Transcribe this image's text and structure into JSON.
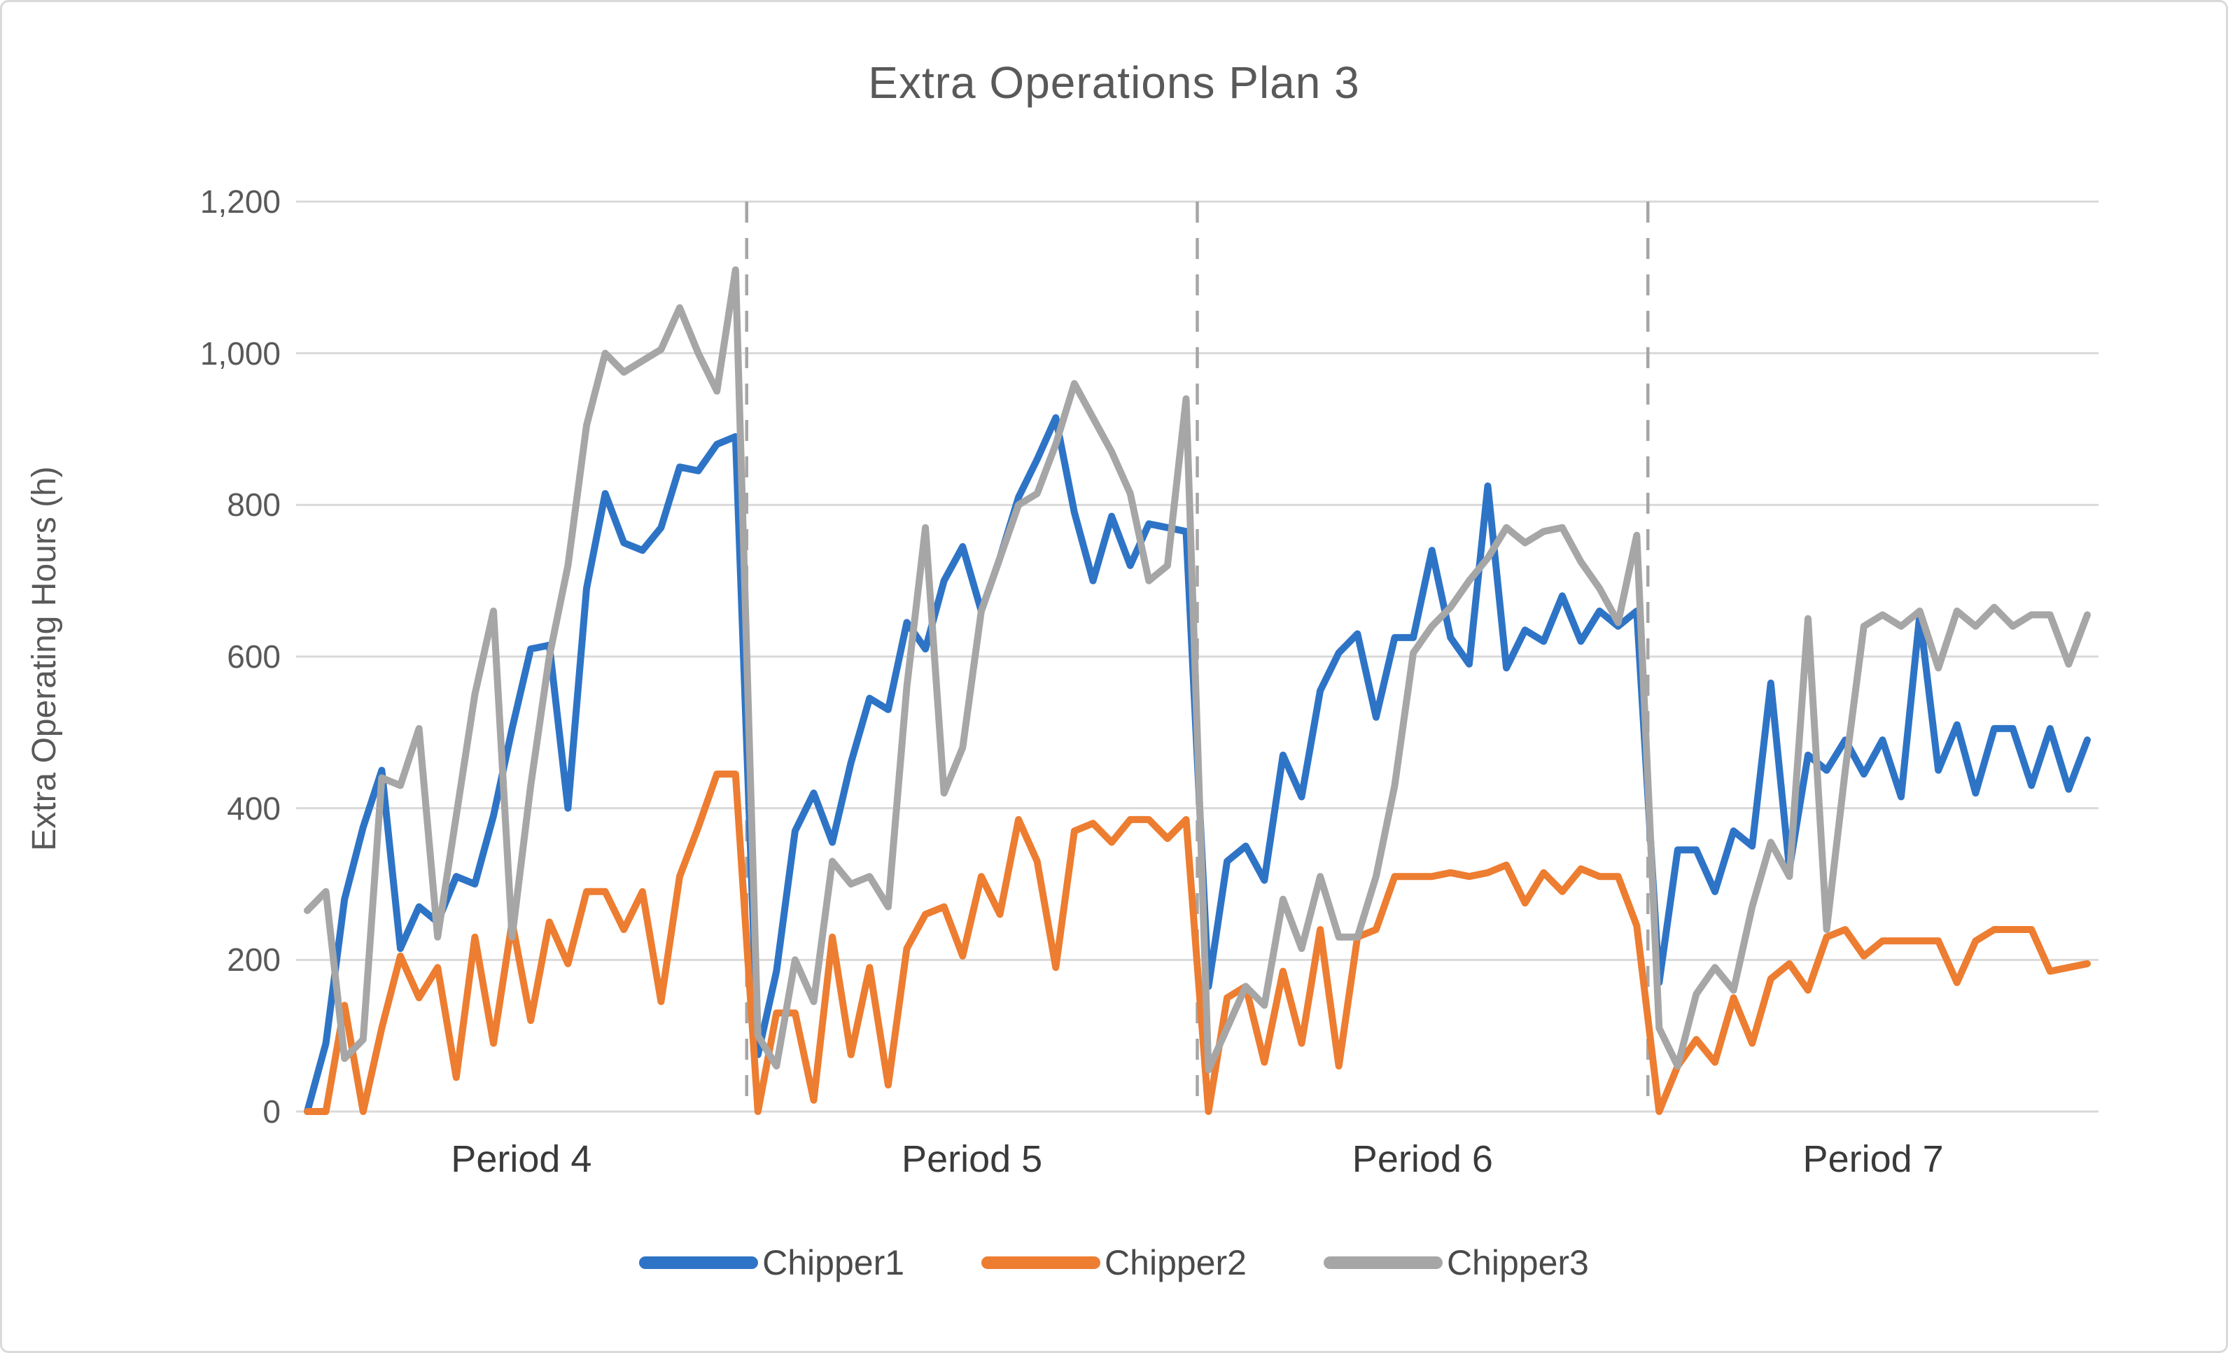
{
  "figure": {
    "title": "Extra Operations Plan 3",
    "y_axis_title": "Extra Operating Hours (h)",
    "y_ticks": [
      "1,200",
      "1,000",
      "800",
      "600",
      "400",
      "200",
      "0"
    ]
  },
  "chart_data": {
    "type": "line",
    "title": "Extra Operations Plan 3",
    "xlabel": "",
    "ylabel": "Extra Operating Hours (h)",
    "ylim": [
      0,
      1200
    ],
    "y_tick_step": 200,
    "grid": "horizontal",
    "legend_position": "bottom",
    "x_groups": [
      "Period 4",
      "Period 5",
      "Period 6",
      "Period 7"
    ],
    "points_per_period": 24,
    "group_separator_style": "dashed vertical gray lines",
    "colors": {
      "grid": "#d9d9d9",
      "separator": "#a6a6a6",
      "title_text": "#595959",
      "axis_text": "#595959"
    },
    "series": [
      {
        "name": "Chipper1",
        "color": "#2e74c6",
        "values": [
          0,
          90,
          280,
          375,
          450,
          215,
          270,
          250,
          310,
          300,
          390,
          505,
          610,
          615,
          400,
          690,
          815,
          750,
          740,
          770,
          850,
          845,
          880,
          890,
          75,
          185,
          370,
          420,
          355,
          460,
          545,
          530,
          645,
          610,
          700,
          745,
          660,
          730,
          810,
          860,
          915,
          790,
          700,
          785,
          720,
          775,
          770,
          765,
          165,
          330,
          350,
          305,
          470,
          415,
          555,
          605,
          630,
          520,
          625,
          625,
          740,
          625,
          590,
          825,
          585,
          635,
          620,
          680,
          620,
          660,
          640,
          660,
          170,
          345,
          345,
          290,
          370,
          350,
          565,
          320,
          470,
          450,
          490,
          445,
          490,
          415,
          655,
          450,
          510,
          420,
          505,
          505,
          430,
          505,
          425,
          490
        ]
      },
      {
        "name": "Chipper2",
        "color": "#ed7d31",
        "values": [
          0,
          0,
          140,
          0,
          110,
          205,
          150,
          190,
          45,
          230,
          90,
          250,
          120,
          250,
          195,
          290,
          290,
          240,
          290,
          145,
          310,
          375,
          445,
          445,
          0,
          130,
          130,
          15,
          230,
          75,
          190,
          35,
          215,
          260,
          270,
          205,
          310,
          260,
          385,
          330,
          190,
          370,
          380,
          355,
          385,
          385,
          360,
          385,
          0,
          150,
          165,
          65,
          185,
          90,
          240,
          60,
          230,
          240,
          310,
          310,
          310,
          315,
          310,
          315,
          325,
          275,
          315,
          290,
          320,
          310,
          310,
          245,
          0,
          60,
          95,
          65,
          150,
          90,
          175,
          195,
          160,
          230,
          240,
          205,
          225,
          225,
          225,
          225,
          170,
          225,
          240,
          240,
          240,
          185,
          190,
          195
        ]
      },
      {
        "name": "Chipper3",
        "color": "#a6a6a6",
        "values": [
          265,
          290,
          70,
          95,
          440,
          430,
          505,
          230,
          390,
          550,
          660,
          230,
          430,
          600,
          720,
          905,
          1000,
          975,
          990,
          1005,
          1060,
          1000,
          950,
          1110,
          100,
          60,
          200,
          145,
          330,
          300,
          310,
          270,
          560,
          770,
          420,
          480,
          660,
          730,
          800,
          815,
          880,
          960,
          915,
          870,
          815,
          700,
          720,
          940,
          55,
          110,
          165,
          140,
          280,
          215,
          310,
          230,
          230,
          310,
          430,
          605,
          640,
          665,
          700,
          730,
          770,
          750,
          765,
          770,
          725,
          690,
          645,
          760,
          110,
          60,
          155,
          190,
          160,
          270,
          355,
          310,
          650,
          240,
          450,
          640,
          655,
          640,
          660,
          585,
          660,
          640,
          665,
          640,
          655,
          655,
          590,
          655
        ]
      }
    ]
  }
}
